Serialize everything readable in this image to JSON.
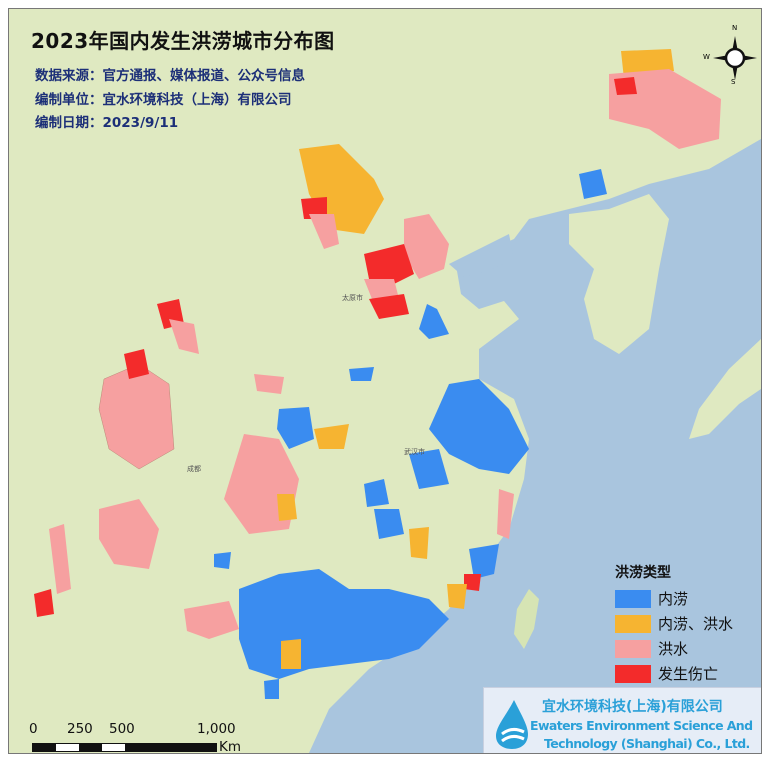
{
  "title": "2023年国内发生洪涝城市分布图",
  "info": {
    "source": "数据来源：官方通报、媒体报道、公众号信息",
    "unit": "编制单位：宜水环境科技（上海）有限公司",
    "date": "编制日期：2023/9/11"
  },
  "legend": {
    "title": "洪涝类型",
    "items": [
      {
        "label": "内涝",
        "color": "#3a8cf0"
      },
      {
        "label": "内涝、洪水",
        "color": "#f6b431"
      },
      {
        "label": "洪水",
        "color": "#f6a0a0"
      },
      {
        "label": "发生伤亡",
        "color": "#f32b2b"
      }
    ]
  },
  "logo": {
    "cn": "宜水环境科技(上海)有限公司",
    "en_line1": "Ewaters Environment Science And",
    "en_line2": "Technology (Shanghai) Co., Ltd."
  },
  "scale_bar": {
    "ticks": [
      "0",
      "250",
      "500",
      "1,000"
    ],
    "unit": "Km"
  },
  "compass": {
    "n": "N",
    "s": "S",
    "e": "E",
    "w": "W"
  },
  "map_labels": {
    "wuhan": "武汉市",
    "taiyuan": "太原市",
    "chengdu": "成都"
  },
  "colors": {
    "land": "#dfe9c1",
    "sea": "#a9c5de"
  }
}
